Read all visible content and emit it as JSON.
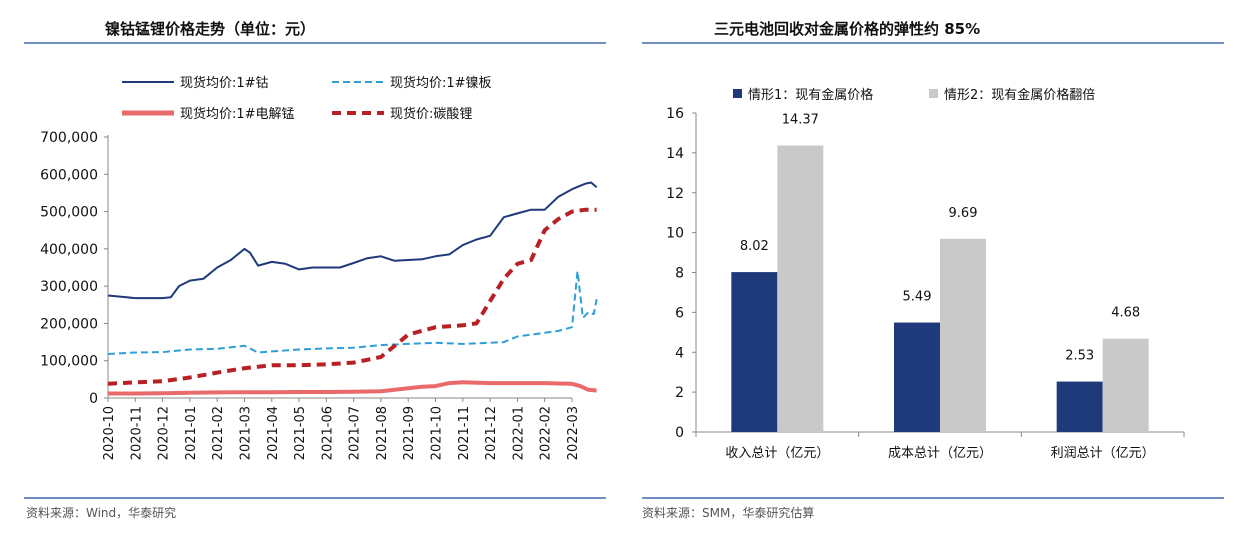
{
  "left": {
    "title": "镍钴锰锂价格走势（单位：元）",
    "source": "资料来源：Wind，华泰研究"
  },
  "right": {
    "title": "三元电池回收对金属价格的弹性约 85%",
    "source": "资料来源：SMM，华泰研究估算"
  },
  "chart_data": [
    {
      "type": "line",
      "title": "镍钴锰锂价格走势（单位：元）",
      "ylim": [
        0,
        700000
      ],
      "yticks": [
        "0",
        "100,000",
        "200,000",
        "300,000",
        "400,000",
        "500,000",
        "600,000",
        "700,000"
      ],
      "xticks": [
        "2020-10",
        "2020-11",
        "2020-12",
        "2021-01",
        "2021-02",
        "2021-03",
        "2021-04",
        "2021-05",
        "2021-06",
        "2021-07",
        "2021-08",
        "2021-09",
        "2021-10",
        "2021-11",
        "2021-12",
        "2022-01",
        "2022-02",
        "2022-03"
      ],
      "series": [
        {
          "name": "现货均价:1#钴",
          "color": "#1f3a7a",
          "style": "solid",
          "x": [
            0,
            1,
            2,
            2.3,
            2.6,
            3,
            3.5,
            4,
            4.5,
            5,
            5.2,
            5.5,
            6,
            6.5,
            7,
            7.5,
            8,
            8.5,
            9,
            9.5,
            10,
            10.5,
            11,
            11.5,
            12,
            12.5,
            13,
            13.5,
            14,
            14.5,
            15,
            15.5,
            16,
            16.5,
            17,
            17.5,
            17.7,
            17.9
          ],
          "values": [
            275000,
            268000,
            268000,
            270000,
            300000,
            315000,
            320000,
            350000,
            370000,
            400000,
            390000,
            355000,
            365000,
            360000,
            345000,
            350000,
            350000,
            350000,
            362000,
            375000,
            380000,
            368000,
            370000,
            372000,
            380000,
            385000,
            410000,
            425000,
            435000,
            485000,
            495000,
            505000,
            505000,
            540000,
            560000,
            575000,
            578000,
            565000
          ]
        },
        {
          "name": "现货均价:1#镍板",
          "color": "#2e9fd6",
          "style": "dashed",
          "x": [
            0,
            1,
            2,
            3,
            4,
            5,
            5.5,
            6,
            7,
            8,
            9,
            10,
            11,
            12,
            13,
            14,
            14.5,
            15,
            16,
            16.5,
            17,
            17.2,
            17.4,
            17.6,
            17.8,
            17.9
          ],
          "values": [
            118000,
            122000,
            123000,
            130000,
            132000,
            140000,
            122000,
            125000,
            130000,
            133000,
            135000,
            142000,
            145000,
            148000,
            145000,
            148000,
            150000,
            165000,
            175000,
            180000,
            190000,
            340000,
            215000,
            230000,
            225000,
            265000
          ]
        },
        {
          "name": "现货均价:1#电解锰",
          "color": "#e96a6a",
          "style": "solid",
          "x": [
            0,
            1,
            2,
            3,
            4,
            5,
            6,
            7,
            8,
            9,
            10,
            11,
            11.5,
            12,
            12.5,
            13,
            14,
            15,
            16,
            16.5,
            17,
            17.3,
            17.6,
            17.9
          ],
          "values": [
            12000,
            12000,
            12500,
            14000,
            15000,
            15500,
            15500,
            16000,
            16000,
            16500,
            18000,
            26000,
            30000,
            32000,
            40000,
            42000,
            40000,
            40000,
            40000,
            39000,
            38000,
            32000,
            22000,
            20000
          ]
        },
        {
          "name": "现货价:碳酸锂",
          "color": "#b72025",
          "style": "dashed-thick",
          "x": [
            0,
            1,
            2,
            3,
            4,
            5,
            6,
            7,
            8,
            9,
            10,
            10.5,
            11,
            12,
            13,
            13.5,
            14,
            14.5,
            15,
            15.5,
            16,
            16.5,
            17,
            17.5,
            17.9
          ],
          "values": [
            38000,
            42000,
            45000,
            55000,
            68000,
            80000,
            88000,
            88000,
            90000,
            95000,
            110000,
            140000,
            170000,
            190000,
            195000,
            200000,
            260000,
            320000,
            360000,
            370000,
            450000,
            480000,
            500000,
            505000,
            505000
          ]
        }
      ]
    },
    {
      "type": "bar",
      "title": "三元电池回收对金属价格的弹性约 85%",
      "categories": [
        "收入总计（亿元）",
        "成本总计（亿元）",
        "利润总计（亿元）"
      ],
      "ylim": [
        0,
        16
      ],
      "yticks": [
        "0",
        "2",
        "4",
        "6",
        "8",
        "10",
        "12",
        "14",
        "16"
      ],
      "series": [
        {
          "name": "情形1：现有金属价格",
          "color": "#1f3a7a",
          "values": [
            8.02,
            5.49,
            2.53
          ],
          "labels": [
            "8.02",
            "5.49",
            "2.53"
          ]
        },
        {
          "name": "情形2：现有金属价格翻倍",
          "color": "#c9c9c9",
          "values": [
            14.37,
            9.69,
            4.68
          ],
          "labels": [
            "14.37",
            "9.69",
            "4.68"
          ]
        }
      ]
    }
  ]
}
